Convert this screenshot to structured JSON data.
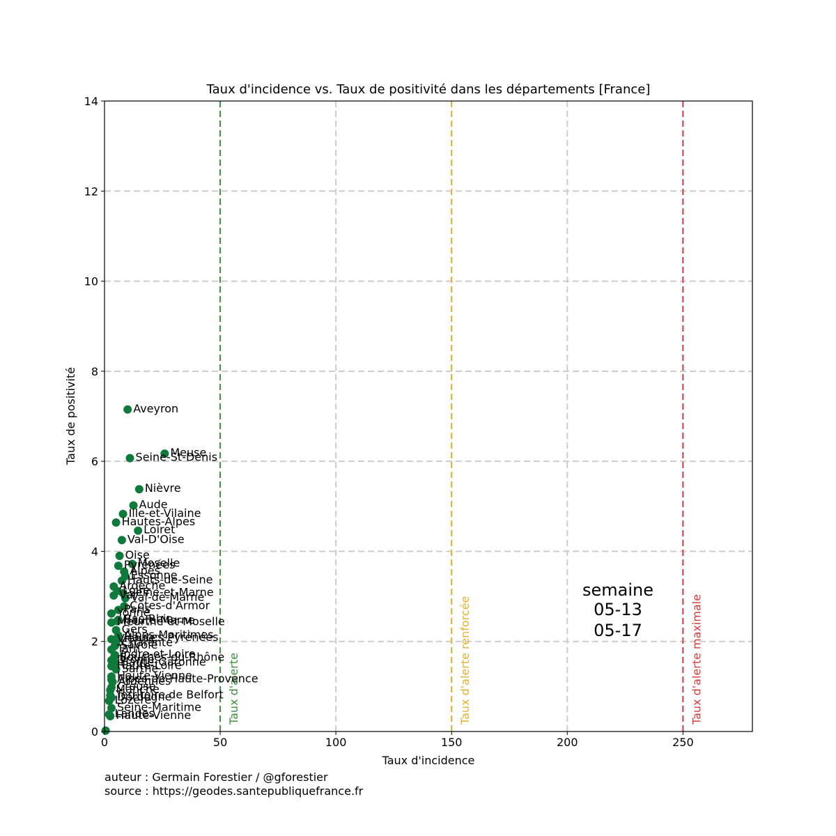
{
  "chart_data": {
    "type": "scatter",
    "title": "Taux d'incidence vs. Taux de positivité dans les départements [France]",
    "xlabel": "Taux d'incidence",
    "ylabel": "Taux de positivité",
    "xlim": [
      0,
      280
    ],
    "ylim": [
      0,
      14
    ],
    "xticks": [
      0,
      50,
      100,
      150,
      200,
      250
    ],
    "yticks": [
      0,
      2,
      4,
      6,
      8,
      10,
      12,
      14
    ],
    "grid": true,
    "point_color": "#0f7a3c",
    "reference_lines": [
      {
        "x": 50,
        "label": "Taux d'alerte",
        "color": "#3c8f3c"
      },
      {
        "x": 150,
        "label": "Taux d'alerte renforcée",
        "color": "#e6b030"
      },
      {
        "x": 250,
        "label": "Taux d'alerte maximale",
        "color": "#d93a3a"
      }
    ],
    "week_box": [
      "semaine",
      "05-13",
      "05-17"
    ],
    "points": [
      {
        "name": "Aveyron",
        "x": 10,
        "y": 7.15
      },
      {
        "name": "Meuse",
        "x": 26,
        "y": 6.17
      },
      {
        "name": "Seine-St-Denis",
        "x": 11,
        "y": 6.07
      },
      {
        "name": "Nièvre",
        "x": 15,
        "y": 5.38
      },
      {
        "name": "Aude",
        "x": 12.5,
        "y": 5.02
      },
      {
        "name": "Ille-et-Vilaine",
        "x": 8,
        "y": 4.83
      },
      {
        "name": "Hautes-Alpes",
        "x": 5,
        "y": 4.64
      },
      {
        "name": "Loiret",
        "x": 14.5,
        "y": 4.46
      },
      {
        "name": "Val-D'Oise",
        "x": 7.5,
        "y": 4.25
      },
      {
        "name": "Oise",
        "x": 6.5,
        "y": 3.9
      },
      {
        "name": "Moselle",
        "x": 12,
        "y": 3.72
      },
      {
        "name": "Pyrénées",
        "x": 6,
        "y": 3.68
      },
      {
        "name": "Alpes",
        "x": 8.5,
        "y": 3.55
      },
      {
        "name": "Essonne",
        "x": 9,
        "y": 3.45
      },
      {
        "name": "Hauts-de-Seine",
        "x": 7.5,
        "y": 3.35
      },
      {
        "name": "Ardèche",
        "x": 4,
        "y": 3.22
      },
      {
        "name": "Loire",
        "x": 5.5,
        "y": 3.12
      },
      {
        "name": "Seine-et-Marne",
        "x": 8,
        "y": 3.07
      },
      {
        "name": "Var",
        "x": 4,
        "y": 3.02
      },
      {
        "name": "Val-de-Marne",
        "x": 9,
        "y": 2.96
      },
      {
        "name": "Côtes-d'Armor",
        "x": 8.5,
        "y": 2.78
      },
      {
        "name": "Paris",
        "x": 6,
        "y": 2.7
      },
      {
        "name": "Yonne",
        "x": 3,
        "y": 2.62
      },
      {
        "name": "Bas-Rhin",
        "x": 6,
        "y": 2.48
      },
      {
        "name": "Haute-Marne",
        "x": 5.5,
        "y": 2.45
      },
      {
        "name": "Meurthe-et-Moselle",
        "x": 3,
        "y": 2.42
      },
      {
        "name": "Gers",
        "x": 5,
        "y": 2.25
      },
      {
        "name": "Alpes-Maritimes",
        "x": 6,
        "y": 2.13
      },
      {
        "name": "Hautes-Pyrénées",
        "x": 6,
        "y": 2.07
      },
      {
        "name": "Vienne",
        "x": 3,
        "y": 2.05
      },
      {
        "name": "Charente",
        "x": 5,
        "y": 1.96
      },
      {
        "name": "Savoie",
        "x": 4.5,
        "y": 1.9
      },
      {
        "name": "Tarn",
        "x": 3,
        "y": 1.82
      },
      {
        "name": "Indre-et-Loire",
        "x": 4.5,
        "y": 1.7
      },
      {
        "name": "Bouches-du-Rhône",
        "x": 4,
        "y": 1.63
      },
      {
        "name": "Drôme",
        "x": 3,
        "y": 1.58
      },
      {
        "name": "Haute-Garonne",
        "x": 4.5,
        "y": 1.52
      },
      {
        "name": "Haute-Loire",
        "x": 3,
        "y": 1.45
      },
      {
        "name": "Sarthe",
        "x": 5,
        "y": 1.38
      },
      {
        "name": "Haute-Vienne",
        "x": 3,
        "y": 1.22
      },
      {
        "name": "Alpes-de-Haute-Provence",
        "x": 3,
        "y": 1.15
      },
      {
        "name": "Ardennes",
        "x": 3.5,
        "y": 1.1
      },
      {
        "name": "Creuse",
        "x": 3,
        "y": 0.98
      },
      {
        "name": "Manche",
        "x": 2.5,
        "y": 0.92
      },
      {
        "name": "Territoire de Belfort",
        "x": 2.5,
        "y": 0.8
      },
      {
        "name": "Dordogne",
        "x": 3,
        "y": 0.75
      },
      {
        "name": "Lozère",
        "x": 2,
        "y": 0.68
      },
      {
        "name": "Seine-Maritime",
        "x": 3,
        "y": 0.52
      },
      {
        "name": "Landes",
        "x": 2,
        "y": 0.38
      },
      {
        "name": "Haute-Vienne",
        "x": 2.5,
        "y": 0.34
      },
      {
        "name": "",
        "x": 0.5,
        "y": 0.02
      }
    ]
  },
  "footer": {
    "author": "auteur : Germain Forestier / @gforestier",
    "source": "source : https://geodes.santepubliquefrance.fr"
  }
}
